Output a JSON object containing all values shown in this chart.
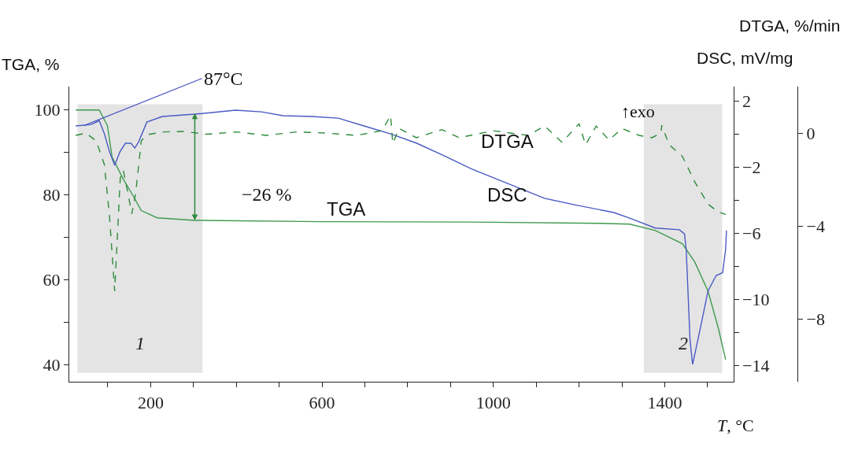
{
  "chart_data": {
    "type": "line",
    "xlabel": "T, °C",
    "ylabel": "TGA, %",
    "y2label": "DSC, mV/mg",
    "y3label": "DTGA, %/min",
    "xlim": [
      10,
      1560
    ],
    "xticks": [
      {
        "value": 100,
        "label": null
      },
      200,
      {
        "value": 300,
        "label": null
      },
      {
        "value": 400,
        "label": null
      },
      {
        "value": 500,
        "label": null
      },
      600,
      {
        "value": 700,
        "label": null
      },
      {
        "value": 800,
        "label": null
      },
      {
        "value": 900,
        "label": null
      },
      1000,
      {
        "value": 1100,
        "label": null
      },
      {
        "value": 1200,
        "label": null
      },
      {
        "value": 1300,
        "label": null
      },
      1400,
      {
        "value": 1500,
        "label": null
      }
    ],
    "ylim": [
      36,
      105.5
    ],
    "yticks": [
      40,
      {
        "value": 50,
        "label": null
      },
      60,
      {
        "value": 70,
        "label": null
      },
      80,
      {
        "value": 90,
        "label": null
      },
      100
    ],
    "y2lim": [
      -15,
      2.86
    ],
    "y2ticks": [
      2,
      {
        "value": 0,
        "label": null
      },
      -2,
      {
        "value": -4,
        "label": null
      },
      -6,
      {
        "value": -8,
        "label": null
      },
      -10,
      {
        "value": -12,
        "label": null
      },
      -14
    ],
    "y3lim": [
      -10.7,
      2.0
    ],
    "y3ticks": [
      0,
      -4,
      -8
    ],
    "grid": false,
    "legend": false,
    "marker": "none",
    "series": [
      {
        "name": "TGA",
        "color": "#3f9a4f",
        "line_style": "solid",
        "x": [
          25,
          80,
          99,
          110,
          135,
          160,
          178,
          215,
          303,
          600,
          950,
          1250,
          1318,
          1378,
          1441,
          1470,
          1501,
          1525,
          1542
        ],
        "values": [
          100,
          100,
          96.3,
          88.9,
          83.9,
          79.6,
          76.3,
          74.6,
          74,
          73.7,
          73.6,
          73.3,
          73.1,
          71.6,
          68.5,
          64.2,
          57.3,
          48.6,
          41.2
        ]
      },
      {
        "name": "DSC",
        "color": "#4a5ac4",
        "axis": "y2",
        "line_style": "solid",
        "x": [
          25,
          62,
          80,
          92,
          104,
          116,
          128,
          141,
          154,
          163,
          172,
          191,
          227,
          303,
          398,
          459,
          509,
          577,
          638,
          698,
          760,
          821,
          882,
          950,
          1119,
          1189,
          1281,
          1318,
          1378,
          1434,
          1446,
          1450,
          1459,
          1465,
          1483,
          1501,
          1520,
          1535,
          1542,
          1544
        ],
        "values": [
          0.48,
          0.57,
          0.8,
          0.0,
          -1.1,
          -1.9,
          -1.1,
          -0.57,
          -0.57,
          -0.86,
          -0.48,
          0.71,
          1.05,
          1.19,
          1.43,
          1.33,
          1.1,
          1.05,
          0.95,
          0.48,
          0.0,
          -0.57,
          -1.29,
          -2.14,
          -3.9,
          -4.29,
          -4.76,
          -5.1,
          -5.7,
          -5.8,
          -6.05,
          -7.0,
          -12.5,
          -13.95,
          -11.76,
          -9.5,
          -8.57,
          -8.4,
          -7.0,
          -5.86
        ]
      },
      {
        "name": "DTGA",
        "color": "#2e8b3e",
        "axis": "y3",
        "line_style": "dashed",
        "x": [
          25,
          49,
          73,
          92,
          104,
          116,
          129,
          136,
          147,
          156,
          165,
          178,
          191,
          230,
          276,
          330,
          400,
          470,
          540,
          610,
          680,
          740,
          760,
          765,
          780,
          820,
          880,
          920,
          1000,
          1080,
          1120,
          1160,
          1200,
          1215,
          1240,
          1270,
          1300,
          1340,
          1370,
          1391,
          1393,
          1410,
          1441,
          1470,
          1501,
          1525,
          1542
        ],
        "values": [
          -0.1,
          0,
          -0.34,
          -1.36,
          -3.6,
          -6.8,
          -1.94,
          -1.6,
          -2.6,
          -3.47,
          -2.6,
          -0.34,
          -0.07,
          0.05,
          0.07,
          -0.05,
          0.05,
          -0.1,
          0.05,
          0.0,
          -0.1,
          0.1,
          0.75,
          -0.45,
          0.2,
          -0.2,
          0.15,
          -0.2,
          0.1,
          -0.1,
          0.3,
          -0.4,
          0.4,
          -0.5,
          0.3,
          -0.3,
          0.2,
          -0.1,
          -0.2,
          0.0,
          0.34,
          -0.5,
          -1.0,
          -2.1,
          -3.06,
          -3.4,
          -3.5
        ]
      }
    ],
    "bands": [
      {
        "axis": "x",
        "from": 29,
        "to": 321,
        "label": "1",
        "color": "#e4e4e4"
      },
      {
        "axis": "x",
        "from": 1351,
        "to": 1534,
        "label": "2",
        "color": "#e4e4e4"
      }
    ],
    "annotations": [
      {
        "text": "87°C",
        "x": 44,
        "y": 96.3
      },
      "−26 %",
      "↑exo"
    ]
  }
}
